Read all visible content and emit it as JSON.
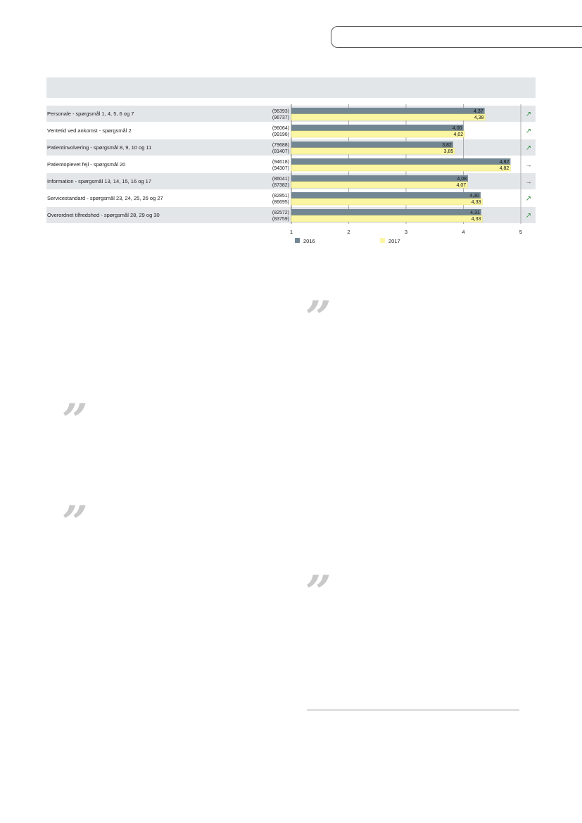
{
  "quote_glyph": "”",
  "chart_data": {
    "type": "bar",
    "orientation": "horizontal",
    "title": "",
    "xlabel": "",
    "ylabel": "",
    "xlim": [
      1,
      5
    ],
    "x_ticks": [
      "1",
      "2",
      "3",
      "4",
      "5"
    ],
    "categories": [
      "Personale - spørgsmål 1, 4, 5, 6 og 7",
      "Ventetid ved ankomst - spørgsmål 2",
      "Patientinvolvering - spørgsmål 8, 9, 10 og 11",
      "Patientoplevet fejl - spørgsmål 20",
      "Information - spørgsmål 13, 14, 15, 16 og 17",
      "Servicestandard - spørgsmål 23, 24, 25, 26 og 27",
      "Overordnet tilfredshed - spørgsmål 28, 29 og 30"
    ],
    "series": [
      {
        "name": "2016",
        "color": "#738793",
        "values": [
          4.37,
          4.0,
          3.82,
          4.82,
          4.08,
          4.3,
          4.31
        ],
        "value_labels": [
          "4,37",
          "4,00",
          "3,82",
          "4,82",
          "4,08",
          "4,30",
          "4,31"
        ],
        "counts": [
          "(96393)",
          "(96064)",
          "(79688)",
          "(94618)",
          "(86041)",
          "(82851)",
          "(82572)"
        ]
      },
      {
        "name": "2017",
        "color": "#fbf6a4",
        "values": [
          4.38,
          4.02,
          3.85,
          4.82,
          4.07,
          4.33,
          4.33
        ],
        "value_labels": [
          "4,38",
          "4,02",
          "3,85",
          "4,82",
          "4,07",
          "4,33",
          "4,33"
        ],
        "counts": [
          "(96737)",
          "(99196)",
          "(81407)",
          "(94307)",
          "(87382)",
          "(86695)",
          "(83759)"
        ]
      }
    ],
    "trend_icons": [
      "arrow-up-right-icon",
      "arrow-up-right-icon",
      "arrow-up-right-icon",
      "arrow-right-icon",
      "arrow-right-icon",
      "arrow-up-right-icon",
      "arrow-up-right-icon"
    ],
    "trend_symbols": {
      "arrow-up-right-icon": "↗",
      "arrow-right-icon": "→"
    },
    "trend_colors": {
      "arrow-up-right-icon": "#2e8b3e",
      "arrow-right-icon": "#555555"
    },
    "row_bg_colors": [
      "#e3e6e9",
      "#ffffff"
    ],
    "grid": true,
    "legend": "bottom"
  }
}
